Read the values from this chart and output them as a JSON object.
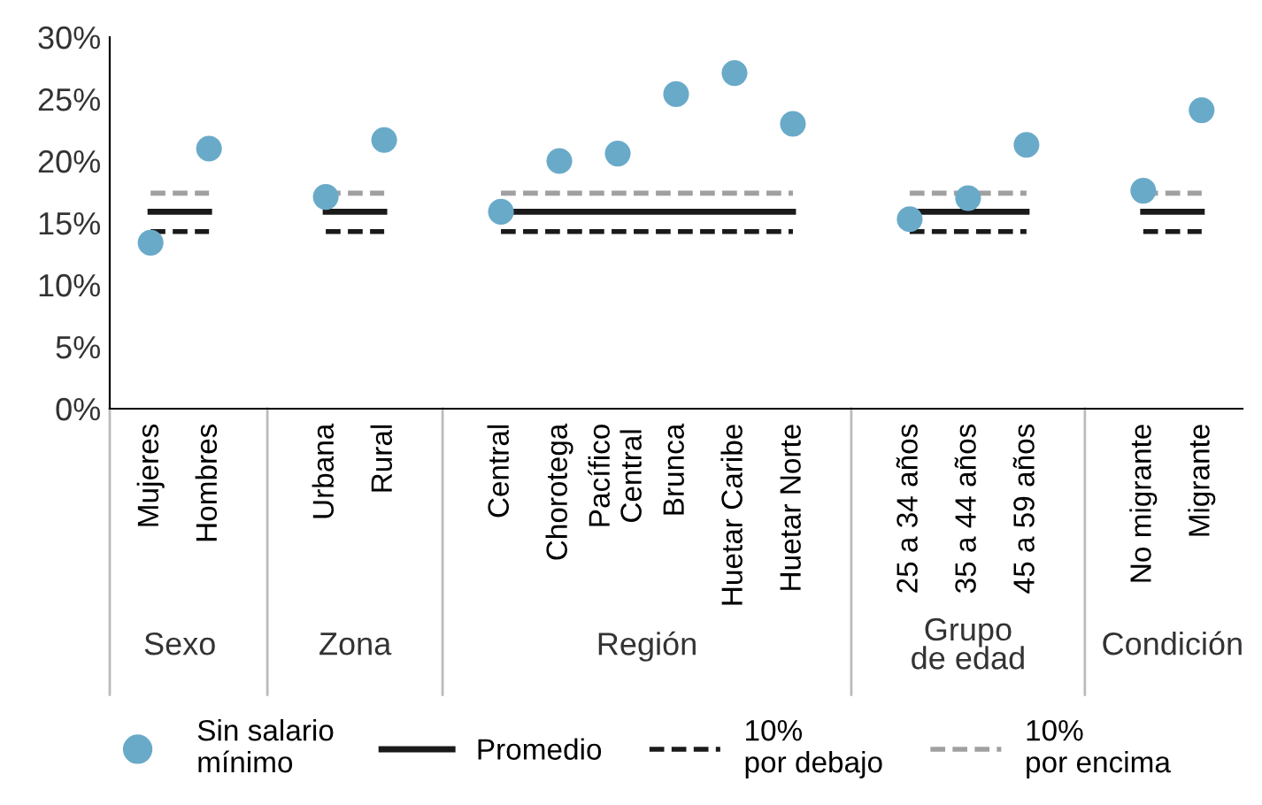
{
  "chart_data": {
    "type": "scatter",
    "categories": [
      "Mujeres",
      "Hombres",
      null,
      "Urbana",
      "Rural",
      null,
      "Central",
      "Chorotega",
      "Pacífico\nCentral",
      "Brunca",
      "Huetar Caribe",
      "Huetar Norte",
      null,
      "25 a 34 años",
      "35 a 44 años",
      "45 a 59 años",
      null,
      "No migrante",
      "Migrante"
    ],
    "annotations": [
      "Sexo",
      "Zona",
      "Región",
      "Grupo\nde edad",
      "Condición"
    ],
    "series": [
      {
        "name": "Sin salario\nmínimo",
        "color": "#6aaac9",
        "marker": "circle",
        "values": [
          13.4,
          21.0,
          null,
          17.1,
          21.7,
          null,
          15.9,
          20.0,
          20.6,
          25.4,
          27.1,
          23.0,
          null,
          15.3,
          17.0,
          21.3,
          null,
          17.6,
          24.1
        ]
      },
      {
        "name": "Promedio",
        "type": "line",
        "color": "#1a1a1a",
        "line_style": "solid",
        "values": [
          15.9,
          15.9,
          null,
          15.9,
          15.9,
          null,
          15.9,
          15.9,
          15.9,
          15.9,
          15.9,
          15.9,
          null,
          15.9,
          15.9,
          15.9,
          null,
          15.9,
          15.9
        ]
      },
      {
        "name": "10%\npor debajo",
        "type": "line",
        "color": "#1a1a1a",
        "line_style": "dashed",
        "values": [
          14.3,
          14.3,
          null,
          14.3,
          14.3,
          null,
          14.3,
          14.3,
          14.3,
          14.3,
          14.3,
          14.3,
          null,
          14.3,
          14.3,
          14.3,
          null,
          14.3,
          14.3
        ]
      },
      {
        "name": "10%\npor encima",
        "type": "line",
        "color": "#a0a0a0",
        "line_style": "dashed",
        "values": [
          17.4,
          17.4,
          null,
          17.4,
          17.4,
          null,
          17.4,
          17.4,
          17.4,
          17.4,
          17.4,
          17.4,
          null,
          17.4,
          17.4,
          17.4,
          null,
          17.4,
          17.4
        ]
      }
    ],
    "ylim": [
      0,
      30
    ],
    "yticks": [
      {
        "value": 0,
        "label": "0%"
      },
      {
        "value": 5,
        "label": "5%"
      },
      {
        "value": 10,
        "label": "10%"
      },
      {
        "value": 15,
        "label": "15%"
      },
      {
        "value": 20,
        "label": "20%"
      },
      {
        "value": 25,
        "label": "25%"
      },
      {
        "value": 30,
        "label": "30%"
      }
    ],
    "grid": false,
    "legend": "bottom"
  }
}
